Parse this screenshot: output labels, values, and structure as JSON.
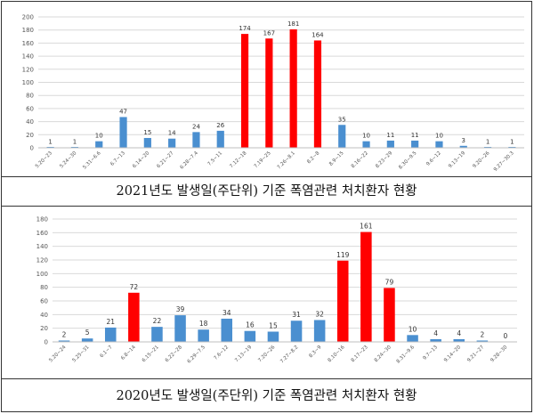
{
  "chart_data": [
    {
      "type": "bar",
      "caption": "2021년도 발생일(주단위) 기준 폭염관련 처치환자 현황",
      "ylim": [
        0,
        200
      ],
      "yticks": [
        0,
        20,
        40,
        60,
        80,
        100,
        120,
        140,
        160,
        180,
        200
      ],
      "grid": true,
      "colors": {
        "normal": "#4a8fd0",
        "highlight": "#ff0000"
      },
      "categories": [
        "5.20~23",
        "5.24~30",
        "5.31~6.6",
        "6.7~13",
        "6.14~20",
        "6.21~27",
        "6.28~7.4",
        "7.5~11",
        "7.12~18",
        "7.19~25",
        "7.26~8.1",
        "8.2~8",
        "8.9~15",
        "8.16~22",
        "8.23~29",
        "8.30~9.5",
        "9.6~12",
        "9.13~19",
        "9.20~26",
        "9.27~30.3"
      ],
      "values": [
        1,
        1,
        10,
        47,
        15,
        14,
        24,
        26,
        174,
        167,
        181,
        164,
        35,
        10,
        11,
        11,
        10,
        3,
        1,
        1
      ],
      "highlight": [
        false,
        false,
        false,
        false,
        false,
        false,
        false,
        false,
        true,
        true,
        true,
        true,
        false,
        false,
        false,
        false,
        false,
        false,
        false,
        false
      ]
    },
    {
      "type": "bar",
      "caption": "2020년도 발생일(주단위) 기준 폭염관련 처치환자 현황",
      "ylim": [
        0,
        180
      ],
      "yticks": [
        0,
        20,
        40,
        60,
        80,
        100,
        120,
        140,
        160,
        180
      ],
      "grid": true,
      "colors": {
        "normal": "#4a8fd0",
        "highlight": "#ff0000"
      },
      "categories": [
        "5.20~24",
        "5.25~31",
        "6.1~7",
        "6.8~14",
        "6.15~21",
        "6.22~28",
        "6.29~7.5",
        "7.6~12",
        "7.13~19",
        "7.20~26",
        "7.27~8.2",
        "8.3~9",
        "8.10~16",
        "8.17~23",
        "8.24~30",
        "8.31~9.6",
        "9.7~13",
        "9.14~20",
        "9.21~27",
        "9.28~30"
      ],
      "values": [
        2,
        5,
        21,
        72,
        22,
        39,
        18,
        34,
        16,
        15,
        31,
        32,
        119,
        161,
        79,
        10,
        4,
        4,
        2,
        0
      ],
      "highlight": [
        false,
        false,
        false,
        true,
        false,
        false,
        false,
        false,
        false,
        false,
        false,
        false,
        true,
        true,
        true,
        false,
        false,
        false,
        false,
        false
      ]
    }
  ]
}
